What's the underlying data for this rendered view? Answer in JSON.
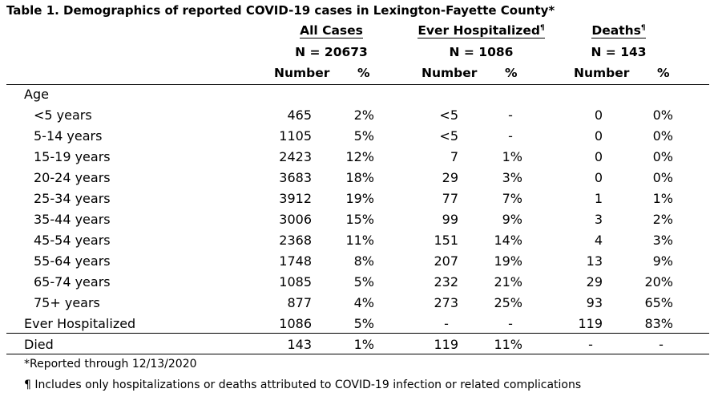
{
  "title": "Table 1. Demographics of reported COVID-19 cases in Lexington-Fayette County*",
  "groups": [
    {
      "label": "All Cases",
      "mark": "",
      "n": "N = 20673"
    },
    {
      "label": "Ever Hospitalized",
      "mark": "¶",
      "n": "N = 1086"
    },
    {
      "label": "Deaths",
      "mark": "¶",
      "n": "N = 143"
    }
  ],
  "subheaders": {
    "number": "Number",
    "pct": "%"
  },
  "section_age": "Age",
  "rows": [
    {
      "label": "<5 years",
      "v": [
        "465",
        "2%",
        "<5",
        "-",
        "0",
        "0%"
      ]
    },
    {
      "label": "5-14 years",
      "v": [
        "1105",
        "5%",
        "<5",
        "-",
        "0",
        "0%"
      ]
    },
    {
      "label": "15-19 years",
      "v": [
        "2423",
        "12%",
        "7",
        "1%",
        "0",
        "0%"
      ]
    },
    {
      "label": "20-24 years",
      "v": [
        "3683",
        "18%",
        "29",
        "3%",
        "0",
        "0%"
      ]
    },
    {
      "label": "25-34 years",
      "v": [
        "3912",
        "19%",
        "77",
        "7%",
        "1",
        "1%"
      ]
    },
    {
      "label": "35-44 years",
      "v": [
        "3006",
        "15%",
        "99",
        "9%",
        "3",
        "2%"
      ]
    },
    {
      "label": "45-54 years",
      "v": [
        "2368",
        "11%",
        "151",
        "14%",
        "4",
        "3%"
      ]
    },
    {
      "label": "55-64 years",
      "v": [
        "1748",
        "8%",
        "207",
        "19%",
        "13",
        "9%"
      ]
    },
    {
      "label": "65-74 years",
      "v": [
        "1085",
        "5%",
        "232",
        "21%",
        "29",
        "20%"
      ]
    },
    {
      "label": "75+ years",
      "v": [
        "877",
        "4%",
        "273",
        "25%",
        "93",
        "65%"
      ]
    },
    {
      "label": "Ever Hospitalized",
      "v": [
        "1086",
        "5%",
        "-",
        "-",
        "119",
        "83%"
      ]
    },
    {
      "label": "Died",
      "v": [
        "143",
        "1%",
        "119",
        "11%",
        "-",
        "-"
      ]
    }
  ],
  "footnotes": [
    "*Reported through 12/13/2020",
    "¶ Includes only hospitalizations or deaths attributed to COVID-19 infection or related complications"
  ]
}
